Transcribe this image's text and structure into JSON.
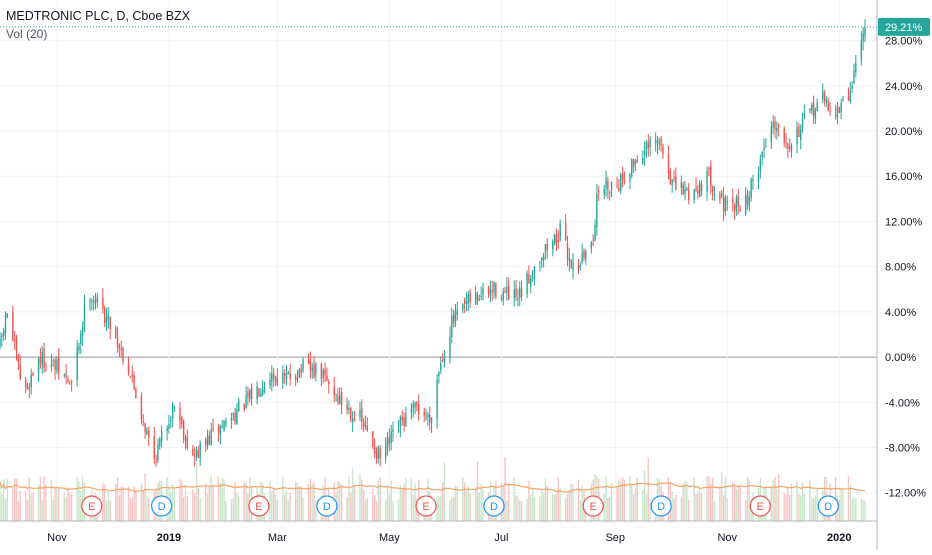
{
  "header": {
    "title": "MEDTRONIC PLC, D, Cboe BZX",
    "volume_label": "Vol (20)"
  },
  "colors": {
    "up": "#26a69a",
    "down": "#ef5350",
    "up_volume": "#c8e6c9",
    "down_volume": "#f8c4c4",
    "volume_ma": "#f4a460",
    "grid": "#f0f3fa",
    "zero_line": "#9598a1",
    "last_price_badge": "#26a69a",
    "earnings_marker": "#ef5350",
    "dividend_marker": "#2196f3"
  },
  "chart_data": {
    "type": "candlestick",
    "y_axis": {
      "unit": "percent",
      "range": [
        -14.5,
        30
      ],
      "ticks": [
        28,
        24,
        20,
        16,
        12,
        8,
        4,
        0,
        -4,
        -8,
        -12
      ],
      "tick_labels": [
        "28.00%",
        "24.00%",
        "20.00%",
        "16.00%",
        "12.00%",
        "8.00%",
        "4.00%",
        "0.00%",
        "-4.00%",
        "-8.00%",
        "-12.00%"
      ],
      "last_value_label": "29.21%",
      "last_value": 29.21
    },
    "x_axis": {
      "range": [
        "2018-10-01",
        "2020-01-15"
      ],
      "tick_dates": [
        "2018-11-01",
        "2019-01-01",
        "2019-03-01",
        "2019-05-01",
        "2019-07-01",
        "2019-09-01",
        "2019-11-01",
        "2020-01-01"
      ],
      "tick_labels": [
        "Nov",
        "2019",
        "Mar",
        "May",
        "Jul",
        "Sep",
        "Nov",
        "2020"
      ]
    },
    "trend": [
      {
        "date": "2018-10-01",
        "value": 1
      },
      {
        "date": "2018-10-05",
        "value": 4
      },
      {
        "date": "2018-10-14",
        "value": -3.5
      },
      {
        "date": "2018-10-22",
        "value": 0
      },
      {
        "date": "2018-11-01",
        "value": -1
      },
      {
        "date": "2018-11-09",
        "value": -2.5
      },
      {
        "date": "2018-11-18",
        "value": 6
      },
      {
        "date": "2018-11-30",
        "value": 3
      },
      {
        "date": "2018-12-10",
        "value": -1
      },
      {
        "date": "2018-12-24",
        "value": -9
      },
      {
        "date": "2019-01-04",
        "value": -4
      },
      {
        "date": "2019-01-14",
        "value": -9
      },
      {
        "date": "2019-01-24",
        "value": -7
      },
      {
        "date": "2019-02-12",
        "value": -4
      },
      {
        "date": "2019-02-25",
        "value": -1.5
      },
      {
        "date": "2019-03-05",
        "value": -2
      },
      {
        "date": "2019-03-15",
        "value": -1
      },
      {
        "date": "2019-03-25",
        "value": -1.5
      },
      {
        "date": "2019-04-05",
        "value": -4
      },
      {
        "date": "2019-04-15",
        "value": -5.5
      },
      {
        "date": "2019-04-26",
        "value": -9
      },
      {
        "date": "2019-05-07",
        "value": -6
      },
      {
        "date": "2019-05-16",
        "value": -4.5
      },
      {
        "date": "2019-05-23",
        "value": -5.5
      },
      {
        "date": "2019-05-28",
        "value": -1
      },
      {
        "date": "2019-06-04",
        "value": 3
      },
      {
        "date": "2019-06-14",
        "value": 5
      },
      {
        "date": "2019-06-28",
        "value": 6
      },
      {
        "date": "2019-07-10",
        "value": 5
      },
      {
        "date": "2019-07-22",
        "value": 9
      },
      {
        "date": "2019-08-02",
        "value": 11
      },
      {
        "date": "2019-08-09",
        "value": 8
      },
      {
        "date": "2019-08-16",
        "value": 9
      },
      {
        "date": "2019-08-20",
        "value": 11
      },
      {
        "date": "2019-08-23",
        "value": 15
      },
      {
        "date": "2019-09-03",
        "value": 15.5
      },
      {
        "date": "2019-09-15",
        "value": 18
      },
      {
        "date": "2019-09-25",
        "value": 19
      },
      {
        "date": "2019-10-03",
        "value": 15
      },
      {
        "date": "2019-10-12",
        "value": 14.5
      },
      {
        "date": "2019-10-22",
        "value": 16
      },
      {
        "date": "2019-11-01",
        "value": 13
      },
      {
        "date": "2019-11-12",
        "value": 14
      },
      {
        "date": "2019-11-20",
        "value": 18
      },
      {
        "date": "2019-11-26",
        "value": 21
      },
      {
        "date": "2019-12-05",
        "value": 19
      },
      {
        "date": "2019-12-14",
        "value": 21
      },
      {
        "date": "2019-12-22",
        "value": 23
      },
      {
        "date": "2019-12-30",
        "value": 21.5
      },
      {
        "date": "2020-01-06",
        "value": 23
      },
      {
        "date": "2020-01-10",
        "value": 26
      },
      {
        "date": "2020-01-15",
        "value": 29.2
      }
    ],
    "events": [
      {
        "type": "E",
        "date": "2018-11-20"
      },
      {
        "type": "D",
        "date": "2018-12-28"
      },
      {
        "type": "E",
        "date": "2019-02-19"
      },
      {
        "type": "D",
        "date": "2019-03-28"
      },
      {
        "type": "E",
        "date": "2019-05-21"
      },
      {
        "type": "D",
        "date": "2019-06-27"
      },
      {
        "type": "E",
        "date": "2019-08-20"
      },
      {
        "type": "D",
        "date": "2019-09-26"
      },
      {
        "type": "E",
        "date": "2019-11-19"
      },
      {
        "type": "D",
        "date": "2019-12-26"
      }
    ],
    "grid": true,
    "legend_position": "top-left"
  }
}
